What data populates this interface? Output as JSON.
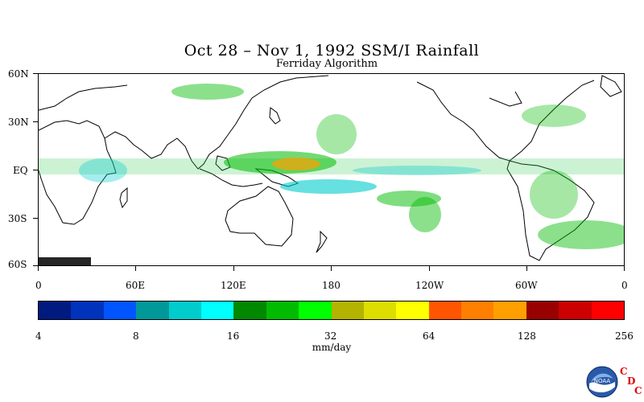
{
  "title": "Oct 28 – Nov 1, 1992 SSM/I Rainfall",
  "subtitle": "Ferriday Algorithm",
  "map": {
    "lat_labels": [
      "60N",
      "30N",
      "EQ",
      "30S",
      "60S"
    ],
    "lon_labels": [
      "0",
      "60E",
      "120E",
      "180",
      "120W",
      "60W",
      "0"
    ]
  },
  "colorbar": {
    "colors": [
      "#001a80",
      "#0033bb",
      "#0055ff",
      "#009999",
      "#00cccc",
      "#00ffff",
      "#008800",
      "#00bb00",
      "#00ff00",
      "#b3b300",
      "#dddd00",
      "#ffff00",
      "#ff5500",
      "#ff7f00",
      "#ffa000",
      "#990000",
      "#cc0000",
      "#ff0000"
    ],
    "tick_labels": [
      "4",
      "8",
      "16",
      "32",
      "64",
      "128",
      "256"
    ],
    "units": "mm/day"
  },
  "logo": {
    "icon": "noaa-logo-icon",
    "text": "NOAA",
    "cdc_letters": [
      "C",
      "D",
      "C"
    ]
  }
}
